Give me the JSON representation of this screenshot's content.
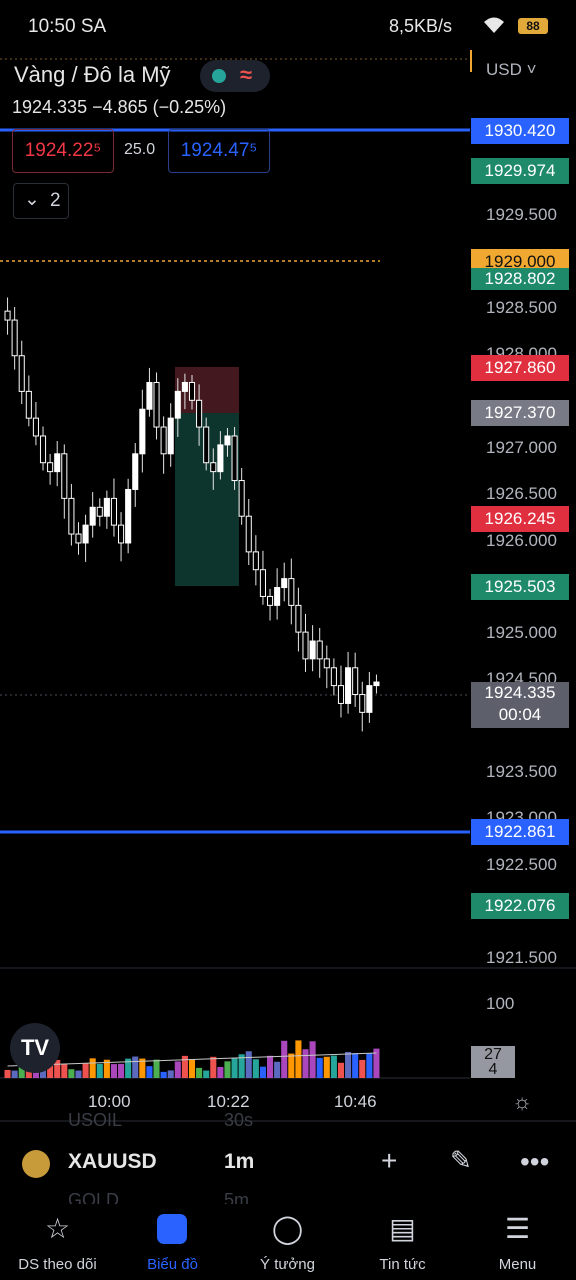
{
  "status_bar": {
    "time": "10:50 SA",
    "net_speed": "8,5KB/s",
    "battery": "88"
  },
  "header": {
    "title": "Vàng / Đô la Mỹ",
    "quote": "1924.335  −4.865 (−0.25%)",
    "bid": "1924.22⁵",
    "spread": "25.0",
    "ask": "1924.47⁵",
    "layers_count": "2",
    "currency": "USD"
  },
  "price_axis": [
    "1929.500",
    "1928.500",
    "1928.000",
    "1927.000",
    "1926.500",
    "1926.000",
    "1925.000",
    "1924.500",
    "1923.500",
    "1923.000",
    "1922.500",
    "1921.500"
  ],
  "price_tags": {
    "t1": "1930.420",
    "t2": "1929.974",
    "t3": "1929.000",
    "t4": "1928.802",
    "t5": "1927.860",
    "t6": "1927.370",
    "t7": "1926.245",
    "t8": "1925.503",
    "current_price": "1924.335",
    "countdown": "00:04",
    "t10": "1922.861",
    "t11": "1922.076"
  },
  "volume": {
    "axis_label": "100",
    "tag_top": "27",
    "tag_bottom": "4"
  },
  "time_axis": [
    "10:00",
    "10:22",
    "10:46"
  ],
  "watchlist_ghost": [
    "USOIL",
    "30s",
    "GOLD",
    "5m"
  ],
  "symbol_bar": {
    "symbol": "XAUUSD",
    "timeframe": "1m"
  },
  "nav": [
    {
      "label": "DS theo dõi",
      "icon": "star-icon"
    },
    {
      "label": "Biểu đồ",
      "icon": "chart-icon"
    },
    {
      "label": "Ý tưởng",
      "icon": "bulb-icon"
    },
    {
      "label": "Tin tức",
      "icon": "news-icon"
    },
    {
      "label": "Menu",
      "icon": "menu-icon"
    }
  ],
  "colors": {
    "up": "#26a69a",
    "down": "#ef5350",
    "blue_line": "#2962ff",
    "orange_tag": "#f0a830",
    "gray_tag": "#787b86"
  },
  "chart_data": {
    "type": "candlestick",
    "y_range": [
      1921.2,
      1930.7
    ],
    "x_ticks": [
      "10:00",
      "10:22",
      "10:46"
    ],
    "horizontal_lines": [
      1930.42,
      1922.861
    ],
    "dotted_lines": [
      1929.0,
      1924.335
    ],
    "close_prices": [
      1928.4,
      1928.0,
      1927.6,
      1927.3,
      1927.1,
      1926.8,
      1926.7,
      1926.9,
      1926.4,
      1926.0,
      1925.9,
      1926.1,
      1926.3,
      1926.2,
      1926.4,
      1926.1,
      1925.9,
      1926.5,
      1926.9,
      1927.4,
      1927.7,
      1927.2,
      1926.9,
      1927.3,
      1927.6,
      1927.7,
      1927.5,
      1927.2,
      1926.8,
      1926.7,
      1927.0,
      1927.1,
      1926.6,
      1926.2,
      1925.8,
      1925.6,
      1925.3,
      1925.2,
      1925.4,
      1925.5,
      1925.2,
      1924.9,
      1924.6,
      1924.8,
      1924.6,
      1924.5,
      1924.3,
      1924.1,
      1924.5,
      1924.2,
      1924.0,
      1924.3,
      1924.34
    ]
  }
}
